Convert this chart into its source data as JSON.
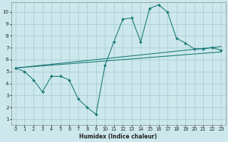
{
  "xlabel": "Humidex (Indice chaleur)",
  "bg_color": "#cce8ec",
  "grid_color": "#aacdd4",
  "line_color": "#1a7a78",
  "xlim": [
    -0.5,
    23.5
  ],
  "ylim": [
    0.5,
    10.8
  ],
  "xticks": [
    0,
    1,
    2,
    3,
    4,
    5,
    6,
    7,
    8,
    9,
    10,
    11,
    12,
    13,
    14,
    15,
    16,
    17,
    18,
    19,
    20,
    21,
    22,
    23
  ],
  "yticks": [
    1,
    2,
    3,
    4,
    5,
    6,
    7,
    8,
    9,
    10
  ],
  "curve_x": [
    0,
    1,
    2,
    3,
    4,
    5,
    6,
    7,
    8,
    9,
    10,
    11,
    12,
    13,
    14,
    15,
    16,
    17,
    18,
    19,
    20,
    21,
    22,
    23
  ],
  "curve_y": [
    5.3,
    5.0,
    4.3,
    3.3,
    4.6,
    4.6,
    4.3,
    2.7,
    2.0,
    1.4,
    5.5,
    7.5,
    9.4,
    9.5,
    7.5,
    10.3,
    10.6,
    10.0,
    7.8,
    7.4,
    6.9,
    6.9,
    7.0,
    6.8
  ],
  "trend1_x": [
    0,
    23
  ],
  "trend1_y": [
    5.3,
    7.1
  ],
  "trend2_x": [
    0,
    23
  ],
  "trend2_y": [
    5.3,
    6.65
  ],
  "xlabel_fontsize": 5.5,
  "tick_fontsize": 4.8
}
